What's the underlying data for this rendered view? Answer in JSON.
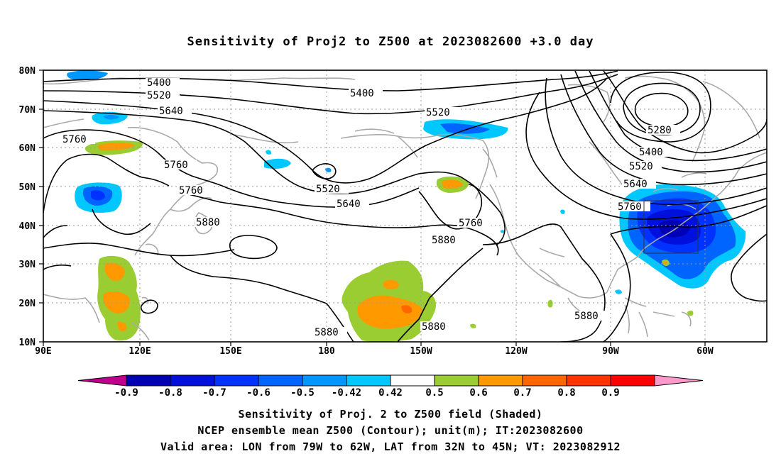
{
  "title": "Sensitivity of Proj2 to Z500 at 2023082600 +3.0 day",
  "map": {
    "lat_labels": [
      "80N",
      "70N",
      "60N",
      "50N",
      "40N",
      "30N",
      "20N",
      "10N"
    ],
    "lon_labels": [
      "90E",
      "120E",
      "150E",
      "180",
      "150W",
      "120W",
      "90W",
      "60W"
    ],
    "contour_labels": [
      "5400",
      "5520",
      "5640",
      "5760",
      "5760",
      "5760",
      "5880",
      "5400",
      "5520",
      "5520",
      "5640",
      "5760",
      "5880",
      "5880",
      "5880",
      "5280",
      "5400",
      "5520",
      "5640",
      "5760",
      "5880"
    ]
  },
  "colorbar": {
    "values": [
      "-0.9",
      "-0.8",
      "-0.7",
      "-0.6",
      "-0.5",
      "-0.42",
      "0.42",
      "0.5",
      "0.6",
      "0.7",
      "0.8",
      "0.9"
    ],
    "colors": [
      "#c0008c",
      "#0000b4",
      "#0010dc",
      "#0032ff",
      "#0064ff",
      "#0096ff",
      "#00c8ff",
      "#ffffff",
      "#9acd32",
      "#ff9900",
      "#ff6600",
      "#ff3300",
      "#ff0000",
      "#ff99cc"
    ]
  },
  "caption": {
    "line1": "Sensitivity of Proj. 2 to Z500 field (Shaded)",
    "line2": "NCEP ensemble mean Z500 (Contour); unit(m); IT:2023082600",
    "line3": "Valid area: LON from 79W to 62W, LAT from 32N to 45N; VT: 2023082912"
  }
}
